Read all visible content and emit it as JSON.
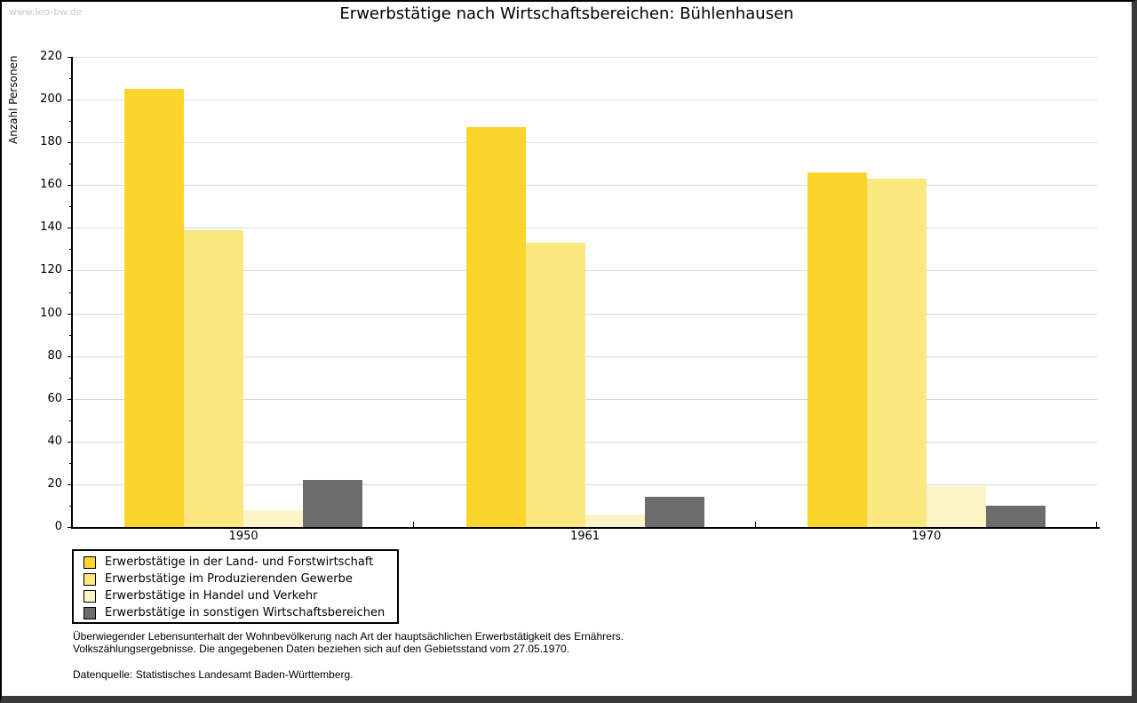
{
  "watermark": "www.leo-bw.de",
  "chart_data": {
    "type": "bar",
    "title": "Erwerbstätige nach Wirtschaftsbereichen: Bühlenhausen",
    "ylabel": "Anzahl Personen",
    "xlabel": "",
    "ylim": [
      0,
      220
    ],
    "ytick_step": 20,
    "grid": true,
    "grid_color": "#d9d9d9",
    "legend_position": "bottom-left",
    "categories": [
      "1950",
      "1961",
      "1970"
    ],
    "series": [
      {
        "name": "Erwerbstätige in der Land- und Forstwirtschaft",
        "color": "#FBD42C",
        "values": [
          205,
          187,
          166
        ]
      },
      {
        "name": "Erwerbstätige im Produzierenden Gewerbe",
        "color": "#FCE881",
        "values": [
          139,
          133,
          163
        ]
      },
      {
        "name": "Erwerbstätige in Handel und Verkehr",
        "color": "#FDF4C6",
        "values": [
          8,
          6,
          19
        ]
      },
      {
        "name": "Erwerbstätige in sonstigen Wirtschaftsbereichen",
        "color": "#6C6C6C",
        "values": [
          22,
          14,
          10
        ]
      }
    ]
  },
  "footnotes": [
    "Überwiegender Lebensunterhalt der Wohnbevölkerung nach Art der hauptsächlichen Erwerbstätigkeit des Ernährers.",
    "Volkszählungsergebnisse. Die angegebenen Daten beziehen sich auf den Gebietsstand vom 27.05.1970."
  ],
  "source": "Datenquelle: Statistisches Landesamt Baden-Württemberg."
}
